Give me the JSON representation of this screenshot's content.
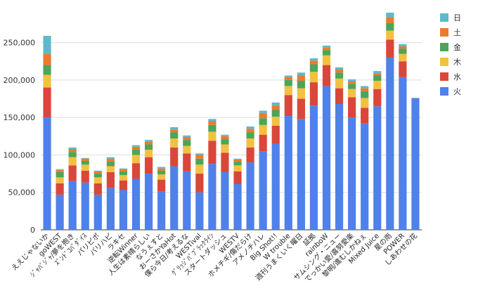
{
  "chart_data": {
    "type": "bar",
    "stacked": true,
    "title": "",
    "xlabel": "",
    "ylabel": "",
    "ylim": [
      0,
      290000
    ],
    "yticks": [
      0,
      50000,
      100000,
      150000,
      200000,
      250000
    ],
    "ytick_labels": [
      "0",
      "50,000",
      "100,000",
      "150,000",
      "200,000",
      "250,000"
    ],
    "grid": true,
    "legend_position": "right",
    "categories": [
      "ええじゃないか",
      "goWEST",
      "ｼﾞｬﾊﾞｼﾞｬ/夢を抱き",
      "ｽﾞﾝﾄﾞｺﾊﾟﾀﾞｲｽ",
      "パリピポ",
      "バリハピ",
      "ラキセ",
      "逆転Winner",
      "人生は素晴らしい",
      "なうぇすと",
      "おーさかYaHot",
      "僕ら今日/考えるな",
      "WESTival",
      "ｸﾞﾘｯｼﾞﾊﾞﾌﾞﾗｯｸﾗｲﾝ",
      "スタートダッシュ",
      "WESTV",
      "ホメチギ/傷だらけ",
      "アメノチハレ",
      "Big Shot!!",
      "W trouble",
      "週刊うまくいく曜日",
      "証拠",
      "rainboW",
      "サムシング・ニュー",
      "でっかい愛/喜努愛楽",
      "黎明/進むしかねぇ",
      "Mixed Juice",
      "星の雨",
      "POWER",
      "しあわせの花"
    ],
    "series": [
      {
        "name": "火",
        "color": "#4f81ea",
        "values": [
          150000,
          47000,
          65000,
          63000,
          47000,
          56000,
          53000,
          68000,
          75000,
          51000,
          85000,
          78000,
          50000,
          88000,
          77000,
          61000,
          90000,
          105000,
          115000,
          152000,
          148000,
          166000,
          192000,
          168000,
          150000,
          142000,
          165000,
          230000,
          204000,
          176000
        ]
      },
      {
        "name": "水",
        "color": "#d9473b",
        "values": [
          40000,
          15000,
          21000,
          16000,
          15000,
          21000,
          13000,
          21000,
          22000,
          16000,
          25000,
          24000,
          25000,
          31000,
          26000,
          17000,
          20000,
          22000,
          24000,
          28000,
          27000,
          31000,
          28000,
          21000,
          27000,
          21000,
          23000,
          24000,
          21000,
          0
        ]
      },
      {
        "name": "木",
        "color": "#f3c042",
        "values": [
          17000,
          8000,
          11000,
          8000,
          8000,
          8000,
          7000,
          11000,
          10000,
          7000,
          12000,
          10000,
          12000,
          12000,
          11000,
          8000,
          12000,
          13000,
          12000,
          12000,
          14000,
          14000,
          13000,
          13000,
          11000,
          13000,
          11000,
          12000,
          10000,
          0
        ]
      },
      {
        "name": "金",
        "color": "#4aa65a",
        "values": [
          13000,
          7000,
          7000,
          5000,
          5000,
          6000,
          5000,
          7000,
          7000,
          5000,
          8000,
          8000,
          8000,
          9000,
          7000,
          5000,
          8000,
          9000,
          9000,
          8000,
          10000,
          10000,
          7000,
          8000,
          7000,
          9000,
          7000,
          10000,
          7000,
          0
        ]
      },
      {
        "name": "土",
        "color": "#ec7a2e",
        "values": [
          15000,
          3000,
          4000,
          3000,
          3000,
          4000,
          3000,
          4000,
          4000,
          3000,
          4000,
          4000,
          5000,
          5000,
          4000,
          3000,
          5000,
          7000,
          6000,
          4000,
          7000,
          5000,
          3000,
          4000,
          3000,
          4000,
          3000,
          8000,
          3000,
          0
        ]
      },
      {
        "name": "日",
        "color": "#5fb9c9",
        "values": [
          24000,
          1000,
          2000,
          1000,
          1000,
          2000,
          1000,
          2000,
          2000,
          2000,
          3000,
          2000,
          2000,
          3000,
          2000,
          1000,
          3000,
          3000,
          4000,
          2000,
          4000,
          3000,
          3000,
          3000,
          3000,
          3000,
          3000,
          6000,
          3000,
          0
        ]
      }
    ]
  }
}
